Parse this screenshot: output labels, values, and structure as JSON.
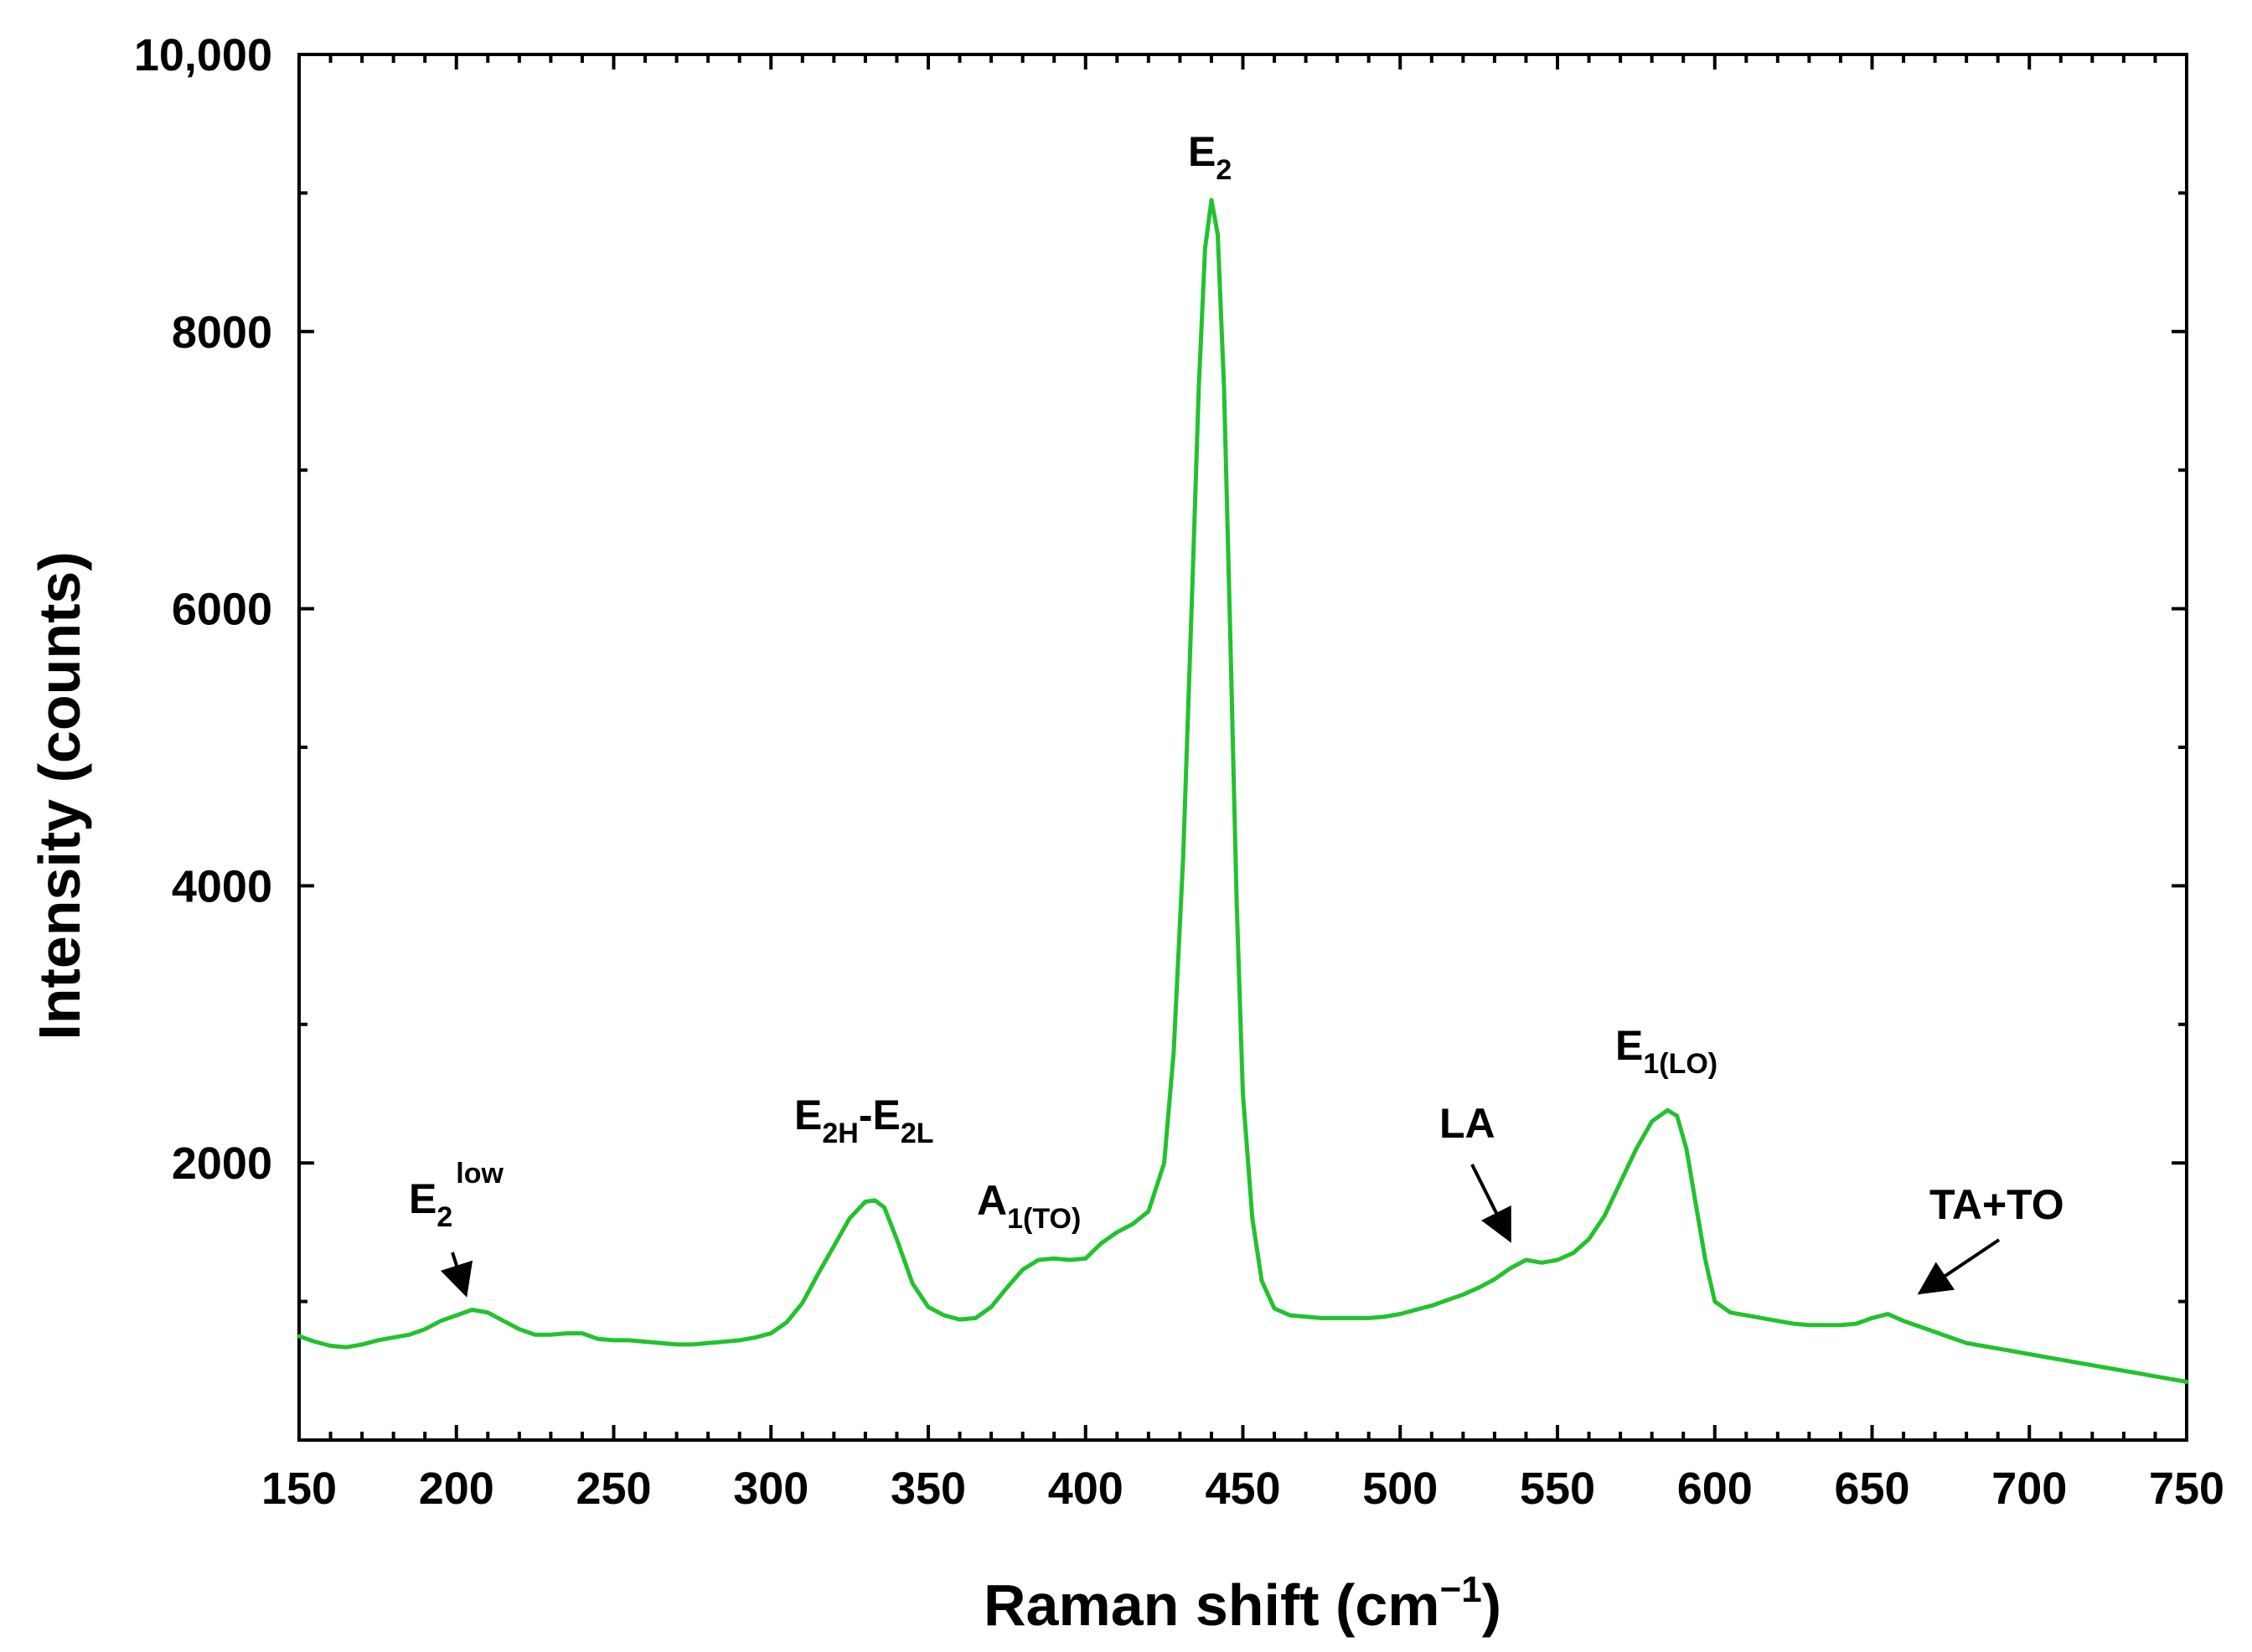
{
  "chart_data": {
    "type": "line",
    "title": "",
    "xlabel": "Raman shift (cm",
    "xlabel_sup": "−1",
    "xlabel_close": ")",
    "ylabel": "Intensity (counts)",
    "xlim": [
      150,
      750
    ],
    "ylim": [
      0,
      10000
    ],
    "x_ticks": [
      150,
      200,
      250,
      300,
      350,
      400,
      450,
      500,
      550,
      600,
      650,
      700,
      750
    ],
    "x_tick_labels": [
      "150",
      "200",
      "250",
      "300",
      "350",
      "400",
      "450",
      "500",
      "550",
      "600",
      "650",
      "700",
      "750"
    ],
    "y_ticks": [
      2000,
      4000,
      6000,
      8000,
      10000
    ],
    "y_tick_labels": [
      "2000",
      "4000",
      "6000",
      "8000",
      "10,000"
    ],
    "grid": false,
    "series": [
      {
        "name": "Raman spectrum",
        "color": "#22c22e",
        "x": [
          150,
          155,
          160,
          165,
          170,
          175,
          180,
          185,
          190,
          195,
          200,
          205,
          210,
          215,
          220,
          225,
          230,
          235,
          240,
          245,
          250,
          255,
          260,
          265,
          270,
          275,
          280,
          285,
          290,
          295,
          300,
          305,
          310,
          315,
          320,
          325,
          330,
          333,
          336,
          340,
          345,
          350,
          355,
          360,
          365,
          370,
          375,
          380,
          385,
          390,
          395,
          400,
          405,
          410,
          415,
          420,
          425,
          428,
          431,
          434,
          436,
          438,
          440,
          442,
          444,
          446,
          448,
          450,
          453,
          456,
          460,
          465,
          470,
          475,
          480,
          485,
          490,
          495,
          500,
          505,
          510,
          515,
          520,
          525,
          530,
          535,
          540,
          545,
          550,
          555,
          560,
          565,
          570,
          575,
          580,
          585,
          588,
          591,
          594,
          597,
          600,
          605,
          610,
          615,
          620,
          625,
          630,
          635,
          640,
          645,
          650,
          655,
          660,
          665,
          670,
          675,
          680,
          685,
          690,
          695,
          700,
          705,
          710,
          715,
          720,
          725,
          730,
          735,
          740,
          745,
          750
        ],
        "y": [
          750,
          710,
          680,
          670,
          690,
          720,
          740,
          760,
          800,
          860,
          900,
          940,
          920,
          860,
          800,
          760,
          760,
          770,
          770,
          730,
          720,
          720,
          710,
          700,
          690,
          690,
          700,
          710,
          720,
          740,
          770,
          850,
          990,
          1200,
          1400,
          1600,
          1720,
          1730,
          1680,
          1450,
          1130,
          960,
          900,
          870,
          880,
          960,
          1100,
          1230,
          1300,
          1310,
          1300,
          1310,
          1420,
          1500,
          1560,
          1650,
          2000,
          2800,
          4200,
          6200,
          7600,
          8600,
          8950,
          8700,
          7600,
          5800,
          3900,
          2500,
          1600,
          1150,
          950,
          900,
          890,
          880,
          880,
          880,
          880,
          890,
          910,
          940,
          970,
          1010,
          1050,
          1100,
          1160,
          1240,
          1300,
          1280,
          1300,
          1350,
          1450,
          1620,
          1860,
          2100,
          2300,
          2380,
          2340,
          2100,
          1700,
          1300,
          1000,
          920,
          900,
          880,
          860,
          840,
          830,
          830,
          830,
          840,
          880,
          910,
          860,
          820,
          780,
          740,
          700,
          680,
          660,
          640,
          620,
          600,
          580,
          560,
          540,
          520,
          500,
          480,
          460,
          440,
          420
        ]
      }
    ],
    "annotations": [
      {
        "main": "E",
        "sub": "2",
        "sup": "low"
      },
      {
        "main": "E",
        "sub": "2H",
        "mid": "-E",
        "sub2": "2L"
      },
      {
        "main": "A",
        "sub": "1(TO)"
      },
      {
        "main": "E",
        "sub": "2"
      },
      {
        "main": "LA"
      },
      {
        "main": "E",
        "sub": "1(LO)"
      },
      {
        "main": "TA+TO"
      }
    ]
  }
}
